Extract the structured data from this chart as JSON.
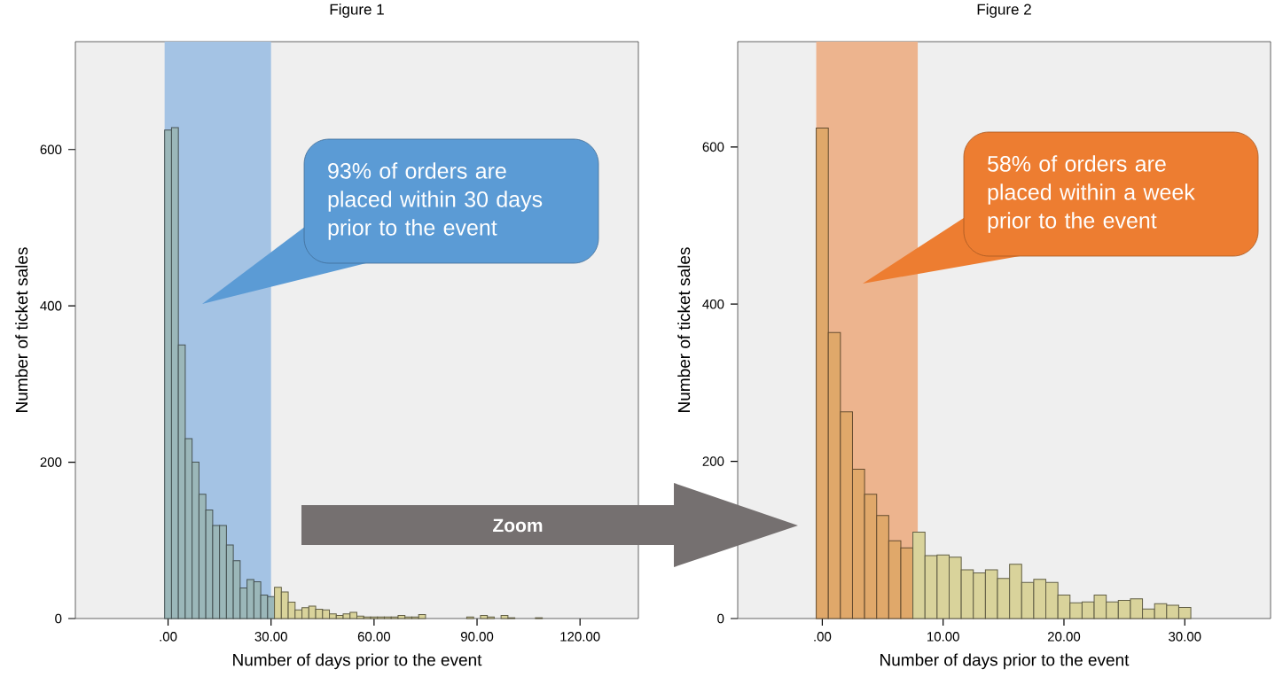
{
  "chart_data": [
    {
      "type": "histogram",
      "title": "Figure 1",
      "xlabel": "Number of days prior to the event",
      "ylabel": "Number of ticket sales",
      "bins": [
        -1,
        1,
        3,
        5,
        7,
        9,
        11,
        13,
        15,
        17,
        19,
        21,
        23,
        25,
        27,
        29,
        31,
        33,
        35,
        37,
        39,
        41,
        43,
        45,
        47,
        49,
        51,
        53,
        55,
        57,
        59,
        61,
        63,
        65,
        67,
        69,
        71,
        73,
        75,
        77,
        79,
        81,
        83,
        85,
        87,
        89,
        91,
        93,
        95,
        97,
        99,
        101,
        103,
        105,
        107,
        109
      ],
      "values": [
        625,
        628,
        350,
        230,
        200,
        159,
        139,
        119,
        119,
        94,
        74,
        39,
        50,
        47,
        30,
        28,
        40,
        34,
        21,
        11,
        14,
        16,
        12,
        11,
        6,
        4,
        6,
        8,
        3,
        2,
        2,
        2,
        2,
        2,
        4,
        2,
        2,
        5,
        0,
        0,
        0,
        0,
        0,
        0,
        2,
        0,
        4,
        2,
        0,
        4,
        1,
        0,
        0,
        0,
        1
      ],
      "colors": [
        "#9bb7b9",
        "#9bb7b9",
        "#9bb7b9",
        "#9bb7b9",
        "#9bb7b9",
        "#9bb7b9",
        "#9bb7b9",
        "#9bb7b9",
        "#9bb7b9",
        "#9bb7b9",
        "#9bb7b9",
        "#9bb7b9",
        "#9bb7b9",
        "#9bb7b9",
        "#9bb7b9",
        "#9bb7b9",
        "#d9d39b",
        "#d9d39b",
        "#d9d39b",
        "#d9d39b",
        "#d9d39b",
        "#d9d39b",
        "#d9d39b",
        "#d9d39b",
        "#d9d39b",
        "#d9d39b",
        "#d9d39b",
        "#d9d39b",
        "#d9d39b",
        "#d9d39b",
        "#d9d39b",
        "#d9d39b",
        "#d9d39b",
        "#d9d39b",
        "#d9d39b",
        "#d9d39b",
        "#d9d39b",
        "#d9d39b",
        "#d9d39b",
        "#d9d39b",
        "#d9d39b",
        "#d9d39b",
        "#d9d39b",
        "#d9d39b",
        "#d9d39b",
        "#d9d39b",
        "#d9d39b",
        "#d9d39b",
        "#d9d39b",
        "#d9d39b",
        "#d9d39b",
        "#d9d39b",
        "#d9d39b",
        "#d9d39b",
        "#d9d39b"
      ],
      "xlim": [
        -27,
        137
      ],
      "ylim": [
        0,
        738
      ],
      "xticks": [
        {
          "value": 0,
          "label": ".00"
        },
        {
          "value": 30,
          "label": "30.00"
        },
        {
          "value": 60,
          "label": "60.00"
        },
        {
          "value": 90,
          "label": "90.00"
        },
        {
          "value": 120,
          "label": "120.00"
        }
      ],
      "yticks": [
        0,
        200,
        400,
        600
      ],
      "bands": [
        {
          "axis": "x",
          "from": -1,
          "to": 30,
          "color": "#a4c3e4"
        }
      ],
      "annotations": [
        "93% of orders are placed within 30 days prior to the event",
        "Zoom"
      ]
    },
    {
      "type": "histogram",
      "title": "Figure 2",
      "xlabel": "Number of days prior to the event",
      "ylabel": "Number of ticket sales",
      "bins": [
        -0.5,
        0.5,
        1.5,
        2.5,
        3.5,
        4.5,
        5.5,
        6.5,
        7.5,
        8.5,
        9.5,
        10.5,
        11.5,
        12.5,
        13.5,
        14.5,
        15.5,
        16.5,
        17.5,
        18.5,
        19.5,
        20.5,
        21.5,
        22.5,
        23.5,
        24.5,
        25.5,
        26.5,
        27.5,
        28.5,
        29.5,
        30.5
      ],
      "values": [
        624,
        364,
        263,
        190,
        158,
        131,
        99,
        90,
        110,
        80,
        81,
        78,
        62,
        58,
        62,
        51,
        69,
        46,
        50,
        46,
        30,
        20,
        21,
        30,
        21,
        23,
        25,
        12,
        19,
        17,
        14
      ],
      "colors": [
        "#e0a86a",
        "#e0a86a",
        "#e0a86a",
        "#e0a86a",
        "#e0a86a",
        "#e0a86a",
        "#e0a86a",
        "#e0a86a",
        "#d9d39b",
        "#d9d39b",
        "#d9d39b",
        "#d9d39b",
        "#d9d39b",
        "#d9d39b",
        "#d9d39b",
        "#d9d39b",
        "#d9d39b",
        "#d9d39b",
        "#d9d39b",
        "#d9d39b",
        "#d9d39b",
        "#d9d39b",
        "#d9d39b",
        "#d9d39b",
        "#d9d39b",
        "#d9d39b",
        "#d9d39b",
        "#d9d39b",
        "#d9d39b",
        "#d9d39b",
        "#d9d39b"
      ],
      "xlim": [
        -7,
        37.1
      ],
      "ylim": [
        0,
        734
      ],
      "xticks": [
        {
          "value": 0,
          "label": ".00"
        },
        {
          "value": 10,
          "label": "10.00"
        },
        {
          "value": 20,
          "label": "20.00"
        },
        {
          "value": 30,
          "label": "30.00"
        }
      ],
      "yticks": [
        0,
        200,
        400,
        600
      ],
      "bands": [
        {
          "axis": "x",
          "from": -0.5,
          "to": 7.9,
          "color": "#edb48e"
        }
      ],
      "annotations": [
        "58% of orders are placed within a week prior to the event"
      ]
    }
  ]
}
